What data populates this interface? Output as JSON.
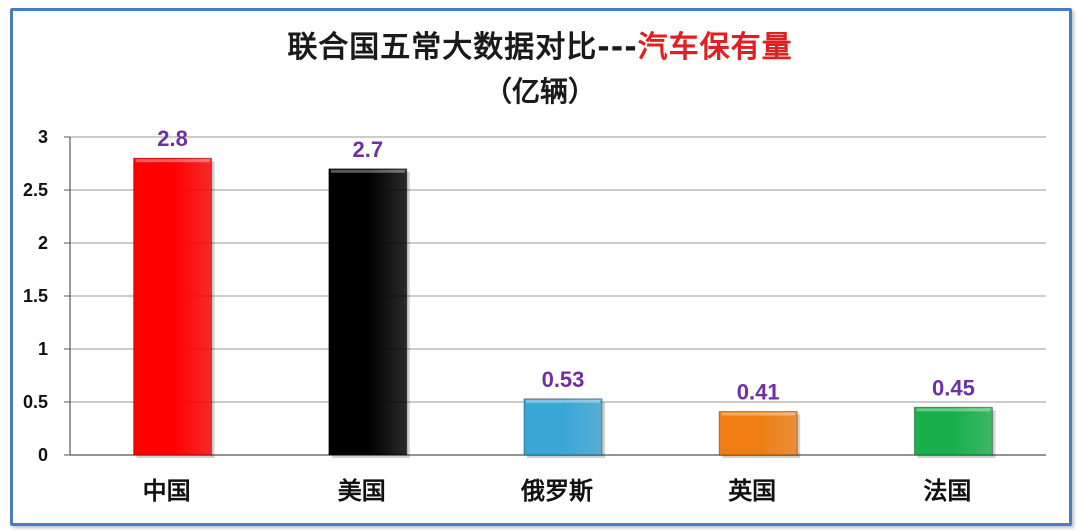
{
  "title": {
    "main": "联合国五常大数据对比---",
    "accent": "汽车保有量",
    "sub": "（亿辆）"
  },
  "colors": {
    "accent": "#e02020",
    "data_label": "#7030a0",
    "frame": "#4a7cc4",
    "bars": [
      "#ff0000",
      "#000000",
      "#3aa6d6",
      "#ef7d12",
      "#18b04c"
    ]
  },
  "chart_data": {
    "type": "bar",
    "title": "联合国五常大数据对比---汽车保有量",
    "subtitle": "（亿辆）",
    "categories": [
      "中国",
      "美国",
      "俄罗斯",
      "英国",
      "法国"
    ],
    "values": [
      2.8,
      2.7,
      0.53,
      0.41,
      0.45
    ],
    "data_labels": [
      "2.8",
      "2.7",
      "0.53",
      "0.41",
      "0.45"
    ],
    "y_ticks": [
      0,
      0.5,
      1,
      1.5,
      2,
      2.5,
      3
    ],
    "y_tick_labels": [
      "0",
      "0.5",
      "1",
      "1.5",
      "2",
      "2.5",
      "3"
    ],
    "ylim": [
      0,
      3
    ],
    "xlabel": "",
    "ylabel": "",
    "grid": true,
    "legend": "none"
  }
}
